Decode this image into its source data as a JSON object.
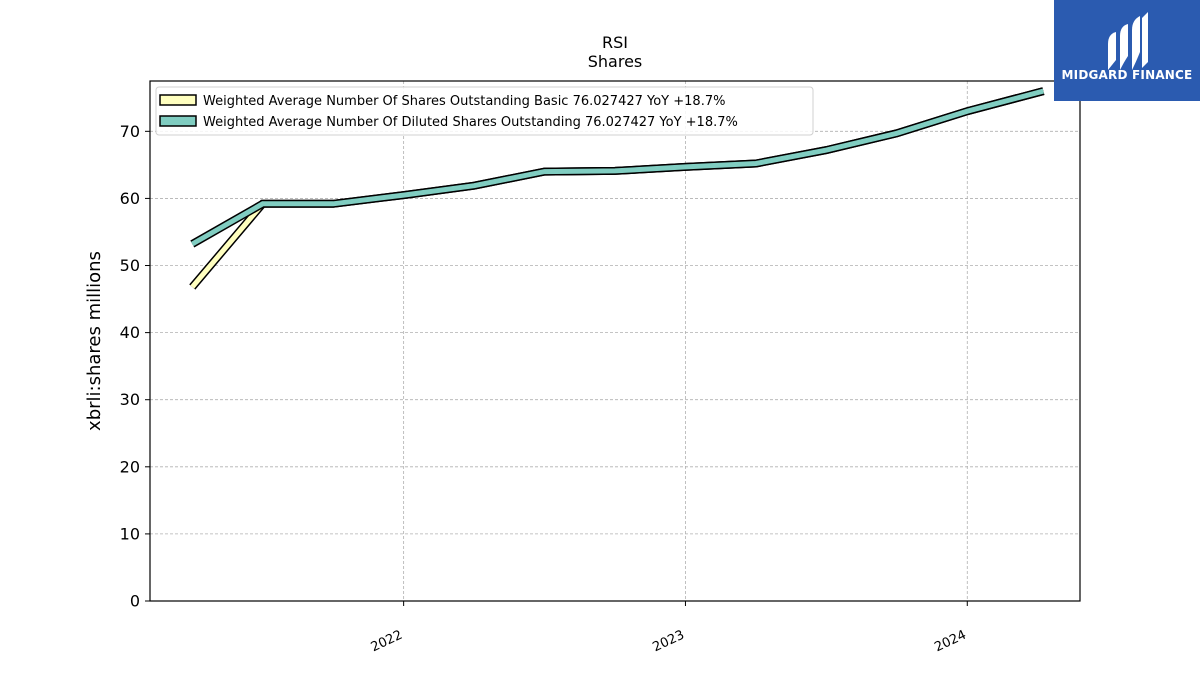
{
  "chart_data": {
    "type": "line",
    "title": "RSI",
    "subtitle": "Shares",
    "ylabel": "xbrli:shares millions",
    "xlabel": "",
    "ylim": [
      0,
      77.5
    ],
    "xlim": [
      2021.1,
      2024.4
    ],
    "yticks": [
      0,
      10,
      20,
      30,
      40,
      50,
      60,
      70
    ],
    "xticks": [
      2022,
      2023,
      2024
    ],
    "grid": true,
    "legend_position": "top-left",
    "series": [
      {
        "name": "Weighted Average Number Of Shares Outstanding Basic  76.027427 YoY +18.7%",
        "color": "#ffffbf",
        "x": [
          2021.25,
          2021.5,
          2021.75,
          2022.0,
          2022.25,
          2022.5,
          2022.75,
          2023.0,
          2023.25,
          2023.5,
          2023.75,
          2024.0,
          2024.27
        ],
        "y": [
          46.8,
          59.2,
          59.2,
          60.5,
          61.9,
          64.0,
          64.1,
          64.7,
          65.2,
          67.2,
          69.7,
          73.0,
          76.0
        ]
      },
      {
        "name": "Weighted Average Number Of Diluted Shares Outstanding  76.027427 YoY +18.7%",
        "color": "#80cdc1",
        "x": [
          2021.25,
          2021.5,
          2021.75,
          2022.0,
          2022.25,
          2022.5,
          2022.75,
          2023.0,
          2023.25,
          2023.5,
          2023.75,
          2024.0,
          2024.27
        ],
        "y": [
          53.2,
          59.2,
          59.2,
          60.5,
          61.9,
          64.0,
          64.1,
          64.7,
          65.2,
          67.2,
          69.7,
          73.0,
          76.0
        ]
      }
    ]
  },
  "logo": {
    "text": "MIDGARD FINANCE",
    "color": "#2b5bb0"
  }
}
